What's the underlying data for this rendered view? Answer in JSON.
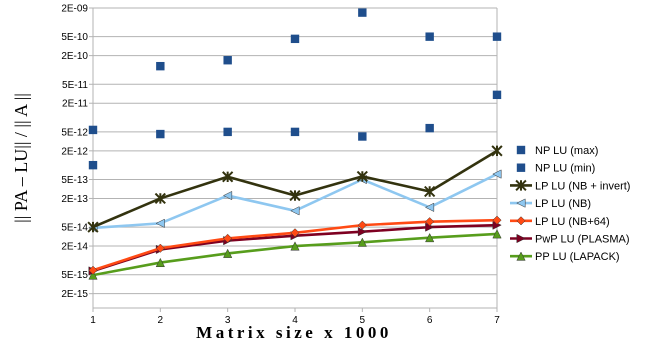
{
  "chart_data": {
    "type": "line",
    "title": "",
    "xlabel": "Matrix size x 1000",
    "ylabel": "|| PA – LU|| / || A ||",
    "xlim": [
      1,
      7
    ],
    "ylim": [
      1e-15,
      2e-09
    ],
    "yscale": "log",
    "grid": "horizontal",
    "legend_position": "right",
    "x": [
      1,
      2,
      3,
      4,
      5,
      6,
      7
    ],
    "yticks": [
      {
        "value": 2e-09,
        "label": "2E-09"
      },
      {
        "value": 5e-10,
        "label": "5E-10"
      },
      {
        "value": 2e-10,
        "label": "2E-10"
      },
      {
        "value": 5e-11,
        "label": "5E-11"
      },
      {
        "value": 2e-11,
        "label": "2E-11"
      },
      {
        "value": 5e-12,
        "label": "5E-12"
      },
      {
        "value": 2e-12,
        "label": "2E-12"
      },
      {
        "value": 5e-13,
        "label": "5E-13"
      },
      {
        "value": 2e-13,
        "label": "2E-13"
      },
      {
        "value": 5e-14,
        "label": "5E-14"
      },
      {
        "value": 2e-14,
        "label": "2E-14"
      },
      {
        "value": 5e-15,
        "label": "5E-15"
      },
      {
        "value": 2e-15,
        "label": "2E-15"
      }
    ],
    "xticks": [
      "1",
      "2",
      "3",
      "4",
      "5",
      "6",
      "7"
    ],
    "series": [
      {
        "name": "NP LU (max)",
        "style": "markers",
        "marker": "square",
        "color": "#1f4e8c",
        "values": [
          5.5e-12,
          1.2e-10,
          1.6e-10,
          4.5e-10,
          1.6e-09,
          5e-10,
          5e-10
        ]
      },
      {
        "name": "NP LU (min)",
        "style": "markers",
        "marker": "square",
        "color": "#1f4e8c",
        "values": [
          1e-12,
          4.5e-12,
          5e-12,
          5e-12,
          4e-12,
          6e-12,
          3e-11
        ]
      },
      {
        "name": "LP LU (NB + invert)",
        "style": "line",
        "marker": "star",
        "color": "#33330f",
        "values": [
          5e-14,
          2e-13,
          5.7e-13,
          2.3e-13,
          5.8e-13,
          2.8e-13,
          2e-12
        ]
      },
      {
        "name": "LP LU (NB)",
        "style": "line",
        "marker": "triangle-left",
        "color": "#8ec7f0",
        "values": [
          4.8e-14,
          6e-14,
          2.3e-13,
          1.1e-13,
          5e-13,
          1.3e-13,
          6.5e-13
        ]
      },
      {
        "name": "LP LU (NB+64)",
        "style": "line",
        "marker": "diamond",
        "color": "#ff4a14",
        "values": [
          6.2e-15,
          1.8e-14,
          2.9e-14,
          3.8e-14,
          5.5e-14,
          6.5e-14,
          7e-14
        ]
      },
      {
        "name": "PwP LU (PLASMA)",
        "style": "line",
        "marker": "triangle-right",
        "color": "#7e0021",
        "values": [
          6e-15,
          1.7e-14,
          2.6e-14,
          3.3e-14,
          4e-14,
          5e-14,
          5.5e-14
        ]
      },
      {
        "name": "PP LU (LAPACK)",
        "style": "line",
        "marker": "triangle-up",
        "color": "#579d1c",
        "values": [
          4.9e-15,
          9e-15,
          1.4e-14,
          2e-14,
          2.4e-14,
          3e-14,
          3.6e-14
        ]
      }
    ]
  }
}
